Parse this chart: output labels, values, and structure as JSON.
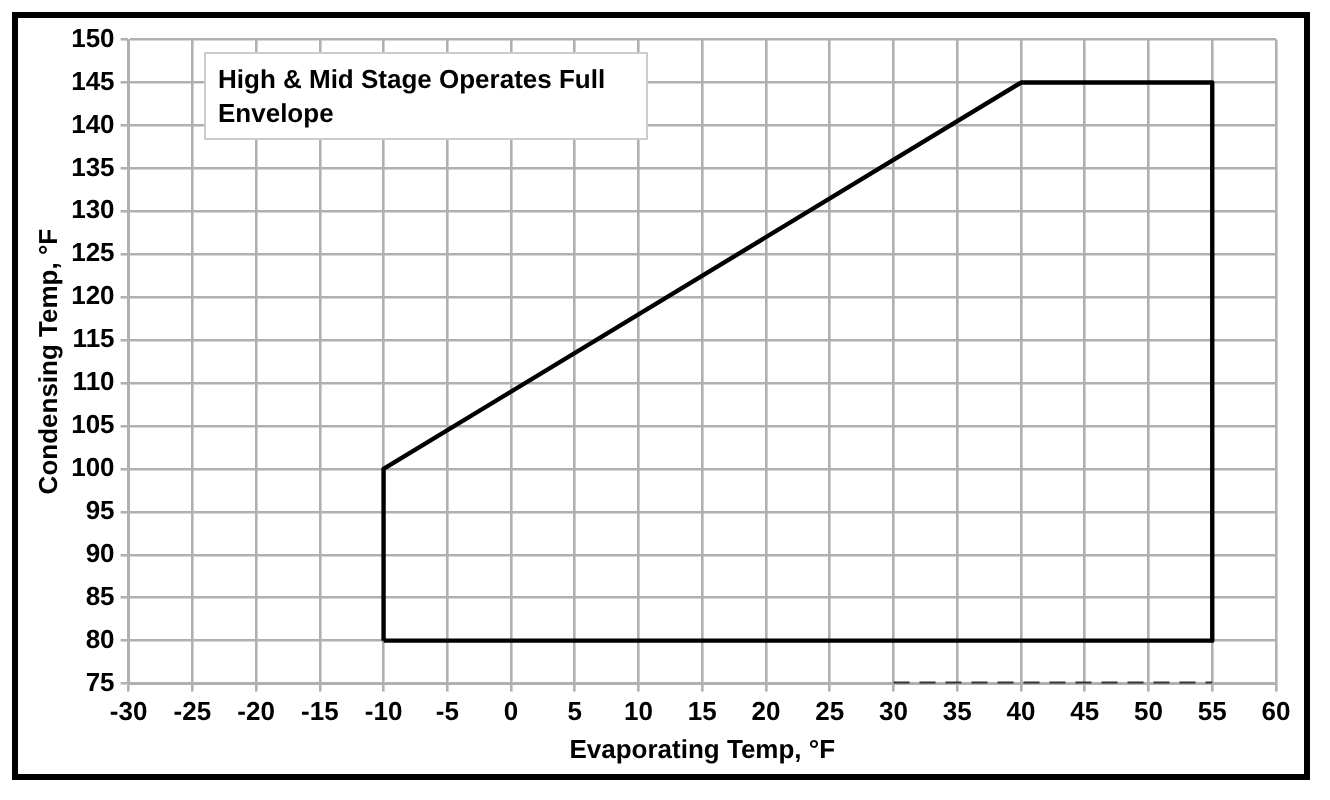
{
  "chart_data": {
    "type": "line",
    "xlabel": "Evaporating Temp, °F",
    "ylabel": "Condensing Temp, °F",
    "annotations": [
      "High & Mid Stage Operates Full Envelope"
    ],
    "series": [
      {
        "x": [
          -10,
          -10,
          40,
          55,
          55
        ],
        "values": [
          80,
          100,
          145,
          145,
          80
        ],
        "color": "#000000",
        "line_style": "solid"
      },
      {
        "x": [
          -10,
          55
        ],
        "values": [
          80,
          80
        ],
        "color": "#000000",
        "line_style": "solid"
      },
      {
        "x": [
          30,
          55
        ],
        "values": [
          75,
          75
        ],
        "color": "#333333",
        "line_style": "dashed"
      }
    ],
    "xlim": [
      -30,
      60
    ],
    "xticks": [
      -30,
      -25,
      -20,
      -15,
      -10,
      -5,
      0,
      5,
      10,
      15,
      20,
      25,
      30,
      35,
      40,
      45,
      50,
      55,
      60
    ],
    "ylim": [
      75,
      150
    ],
    "yticks": [
      75,
      80,
      85,
      90,
      95,
      100,
      105,
      110,
      115,
      120,
      125,
      130,
      135,
      140,
      145,
      150
    ],
    "grid": true,
    "legend": false,
    "marker": "none"
  }
}
